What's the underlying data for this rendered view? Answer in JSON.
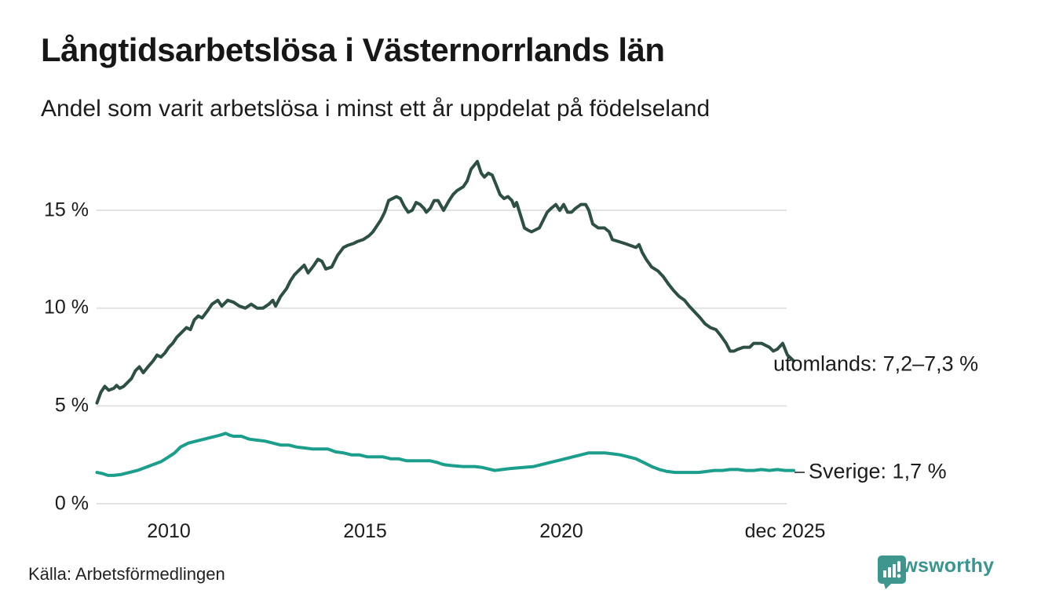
{
  "header": {
    "title": "Långtidsarbetslösa i Västernorrlands län",
    "subtitle": "Andel som varit arbetslösa i minst ett år uppdelat på födelseland"
  },
  "footer": {
    "source": "Källa: Arbetsförmedlingen",
    "brand": "Newsworthy"
  },
  "colors": {
    "utomlands_line": "#2d4f44",
    "sverige_line": "#1b9e8c",
    "gridline": "#e2e2e2",
    "text": "#1b1b1b",
    "brand_teal": "#3a958e"
  },
  "chart_data": {
    "type": "line",
    "title": "Långtidsarbetslösa i Västernorrlands län",
    "subtitle": "Andel som varit arbetslösa i minst ett år uppdelat på födelseland",
    "xlabel": "",
    "ylabel": "",
    "unit": "%",
    "grid": true,
    "legend_position": "end-of-line annotations",
    "x_axis": {
      "ticks": [
        {
          "label": "2010",
          "year": 2010
        },
        {
          "label": "2015",
          "year": 2015
        },
        {
          "label": "2020",
          "year": 2020
        },
        {
          "label": "dec 2025",
          "year": 2025.92
        }
      ],
      "range": [
        2008.17,
        2025.92
      ]
    },
    "y_axis": {
      "ticks": [
        {
          "label": "15 %",
          "value": 15
        },
        {
          "label": "10 %",
          "value": 10
        },
        {
          "label": "5 %",
          "value": 5
        },
        {
          "label": "0 %",
          "value": 0
        }
      ],
      "range": [
        0,
        17.8
      ]
    },
    "series": [
      {
        "name": "utomlands",
        "label": "utomlands: 7,2–7,3 %",
        "last_value_text": "7,2–7,3 %",
        "color": "#2d4f44",
        "points": [
          [
            2008.17,
            5.15
          ],
          [
            2008.27,
            5.7
          ],
          [
            2008.37,
            6.0
          ],
          [
            2008.47,
            5.8
          ],
          [
            2008.6,
            5.9
          ],
          [
            2008.67,
            6.05
          ],
          [
            2008.75,
            5.9
          ],
          [
            2008.85,
            6.0
          ],
          [
            2008.95,
            6.2
          ],
          [
            2009.05,
            6.4
          ],
          [
            2009.15,
            6.8
          ],
          [
            2009.25,
            7.0
          ],
          [
            2009.35,
            6.7
          ],
          [
            2009.45,
            6.95
          ],
          [
            2009.6,
            7.3
          ],
          [
            2009.7,
            7.6
          ],
          [
            2009.8,
            7.5
          ],
          [
            2009.9,
            7.7
          ],
          [
            2010.0,
            8.0
          ],
          [
            2010.1,
            8.2
          ],
          [
            2010.2,
            8.5
          ],
          [
            2010.35,
            8.8
          ],
          [
            2010.45,
            9.0
          ],
          [
            2010.55,
            8.9
          ],
          [
            2010.65,
            9.4
          ],
          [
            2010.75,
            9.6
          ],
          [
            2010.85,
            9.5
          ],
          [
            2011.0,
            9.9
          ],
          [
            2011.1,
            10.2
          ],
          [
            2011.25,
            10.4
          ],
          [
            2011.35,
            10.1
          ],
          [
            2011.5,
            10.4
          ],
          [
            2011.65,
            10.3
          ],
          [
            2011.8,
            10.1
          ],
          [
            2011.95,
            10.0
          ],
          [
            2012.1,
            10.2
          ],
          [
            2012.25,
            10.0
          ],
          [
            2012.4,
            10.0
          ],
          [
            2012.55,
            10.2
          ],
          [
            2012.65,
            10.4
          ],
          [
            2012.72,
            10.1
          ],
          [
            2012.85,
            10.6
          ],
          [
            2013.0,
            11.0
          ],
          [
            2013.1,
            11.4
          ],
          [
            2013.2,
            11.7
          ],
          [
            2013.35,
            12.0
          ],
          [
            2013.45,
            12.2
          ],
          [
            2013.55,
            11.8
          ],
          [
            2013.7,
            12.2
          ],
          [
            2013.8,
            12.5
          ],
          [
            2013.9,
            12.4
          ],
          [
            2014.0,
            12.0
          ],
          [
            2014.15,
            12.1
          ],
          [
            2014.3,
            12.7
          ],
          [
            2014.45,
            13.1
          ],
          [
            2014.55,
            13.2
          ],
          [
            2014.7,
            13.3
          ],
          [
            2014.8,
            13.4
          ],
          [
            2014.95,
            13.5
          ],
          [
            2015.1,
            13.7
          ],
          [
            2015.2,
            13.9
          ],
          [
            2015.3,
            14.2
          ],
          [
            2015.4,
            14.5
          ],
          [
            2015.5,
            14.9
          ],
          [
            2015.6,
            15.5
          ],
          [
            2015.7,
            15.6
          ],
          [
            2015.8,
            15.7
          ],
          [
            2015.9,
            15.6
          ],
          [
            2016.0,
            15.2
          ],
          [
            2016.1,
            14.9
          ],
          [
            2016.2,
            15.0
          ],
          [
            2016.3,
            15.4
          ],
          [
            2016.4,
            15.3
          ],
          [
            2016.5,
            15.1
          ],
          [
            2016.56,
            14.9
          ],
          [
            2016.66,
            15.1
          ],
          [
            2016.76,
            15.5
          ],
          [
            2016.86,
            15.5
          ],
          [
            2017.0,
            15.0
          ],
          [
            2017.14,
            15.5
          ],
          [
            2017.24,
            15.8
          ],
          [
            2017.34,
            16.0
          ],
          [
            2017.5,
            16.2
          ],
          [
            2017.6,
            16.5
          ],
          [
            2017.7,
            17.1
          ],
          [
            2017.86,
            17.5
          ],
          [
            2017.96,
            16.9
          ],
          [
            2018.04,
            16.7
          ],
          [
            2018.14,
            16.9
          ],
          [
            2018.24,
            16.8
          ],
          [
            2018.34,
            16.3
          ],
          [
            2018.44,
            15.8
          ],
          [
            2018.54,
            15.6
          ],
          [
            2018.64,
            15.7
          ],
          [
            2018.74,
            15.5
          ],
          [
            2018.8,
            15.2
          ],
          [
            2018.86,
            15.4
          ],
          [
            2019.0,
            14.5
          ],
          [
            2019.06,
            14.1
          ],
          [
            2019.14,
            14.0
          ],
          [
            2019.24,
            13.9
          ],
          [
            2019.34,
            14.0
          ],
          [
            2019.44,
            14.1
          ],
          [
            2019.54,
            14.5
          ],
          [
            2019.64,
            14.9
          ],
          [
            2019.74,
            15.1
          ],
          [
            2019.86,
            15.3
          ],
          [
            2019.96,
            15.0
          ],
          [
            2020.06,
            15.3
          ],
          [
            2020.16,
            14.9
          ],
          [
            2020.26,
            14.9
          ],
          [
            2020.36,
            15.1
          ],
          [
            2020.5,
            15.3
          ],
          [
            2020.62,
            15.3
          ],
          [
            2020.7,
            15.0
          ],
          [
            2020.8,
            14.3
          ],
          [
            2020.94,
            14.1
          ],
          [
            2021.1,
            14.1
          ],
          [
            2021.22,
            13.9
          ],
          [
            2021.3,
            13.5
          ],
          [
            2021.46,
            13.4
          ],
          [
            2021.62,
            13.3
          ],
          [
            2021.76,
            13.2
          ],
          [
            2021.9,
            13.1
          ],
          [
            2021.98,
            13.25
          ],
          [
            2022.06,
            12.85
          ],
          [
            2022.16,
            12.5
          ],
          [
            2022.3,
            12.1
          ],
          [
            2022.46,
            11.9
          ],
          [
            2022.6,
            11.6
          ],
          [
            2022.74,
            11.2
          ],
          [
            2022.86,
            10.9
          ],
          [
            2023.0,
            10.6
          ],
          [
            2023.14,
            10.4
          ],
          [
            2023.26,
            10.1
          ],
          [
            2023.4,
            9.8
          ],
          [
            2023.54,
            9.5
          ],
          [
            2023.66,
            9.2
          ],
          [
            2023.8,
            9.0
          ],
          [
            2023.94,
            8.9
          ],
          [
            2024.06,
            8.6
          ],
          [
            2024.2,
            8.2
          ],
          [
            2024.3,
            7.8
          ],
          [
            2024.4,
            7.8
          ],
          [
            2024.5,
            7.9
          ],
          [
            2024.64,
            8.0
          ],
          [
            2024.8,
            8.0
          ],
          [
            2024.9,
            8.2
          ],
          [
            2025.0,
            8.2
          ],
          [
            2025.1,
            8.2
          ],
          [
            2025.2,
            8.1
          ],
          [
            2025.3,
            8.0
          ],
          [
            2025.4,
            7.8
          ],
          [
            2025.5,
            7.9
          ],
          [
            2025.64,
            8.2
          ],
          [
            2025.76,
            7.6
          ],
          [
            2025.92,
            7.3
          ]
        ]
      },
      {
        "name": "Sverige",
        "label": "Sverige: 1,7 %",
        "last_value_text": "1,7 %",
        "color": "#1b9e8c",
        "points": [
          [
            2008.17,
            1.6
          ],
          [
            2008.3,
            1.55
          ],
          [
            2008.45,
            1.45
          ],
          [
            2008.6,
            1.45
          ],
          [
            2008.8,
            1.5
          ],
          [
            2009.0,
            1.6
          ],
          [
            2009.2,
            1.7
          ],
          [
            2009.4,
            1.85
          ],
          [
            2009.6,
            2.0
          ],
          [
            2009.8,
            2.15
          ],
          [
            2010.0,
            2.4
          ],
          [
            2010.15,
            2.6
          ],
          [
            2010.3,
            2.9
          ],
          [
            2010.5,
            3.1
          ],
          [
            2010.7,
            3.2
          ],
          [
            2010.9,
            3.3
          ],
          [
            2011.1,
            3.4
          ],
          [
            2011.3,
            3.5
          ],
          [
            2011.45,
            3.6
          ],
          [
            2011.55,
            3.5
          ],
          [
            2011.65,
            3.45
          ],
          [
            2011.85,
            3.45
          ],
          [
            2012.05,
            3.3
          ],
          [
            2012.25,
            3.25
          ],
          [
            2012.45,
            3.2
          ],
          [
            2012.65,
            3.1
          ],
          [
            2012.85,
            3.0
          ],
          [
            2013.05,
            3.0
          ],
          [
            2013.25,
            2.9
          ],
          [
            2013.45,
            2.85
          ],
          [
            2013.65,
            2.8
          ],
          [
            2013.85,
            2.8
          ],
          [
            2014.05,
            2.8
          ],
          [
            2014.25,
            2.65
          ],
          [
            2014.45,
            2.6
          ],
          [
            2014.65,
            2.5
          ],
          [
            2014.85,
            2.5
          ],
          [
            2015.05,
            2.4
          ],
          [
            2015.25,
            2.4
          ],
          [
            2015.45,
            2.4
          ],
          [
            2015.65,
            2.3
          ],
          [
            2015.85,
            2.3
          ],
          [
            2016.05,
            2.2
          ],
          [
            2016.25,
            2.2
          ],
          [
            2016.45,
            2.2
          ],
          [
            2016.65,
            2.2
          ],
          [
            2016.85,
            2.1
          ],
          [
            2017.0,
            2.0
          ],
          [
            2017.2,
            1.95
          ],
          [
            2017.5,
            1.9
          ],
          [
            2017.8,
            1.9
          ],
          [
            2018.0,
            1.85
          ],
          [
            2018.3,
            1.7
          ],
          [
            2018.5,
            1.75
          ],
          [
            2018.7,
            1.8
          ],
          [
            2019.0,
            1.85
          ],
          [
            2019.3,
            1.9
          ],
          [
            2019.5,
            2.0
          ],
          [
            2019.7,
            2.1
          ],
          [
            2019.9,
            2.2
          ],
          [
            2020.1,
            2.3
          ],
          [
            2020.3,
            2.4
          ],
          [
            2020.5,
            2.5
          ],
          [
            2020.7,
            2.6
          ],
          [
            2020.9,
            2.6
          ],
          [
            2021.1,
            2.6
          ],
          [
            2021.3,
            2.55
          ],
          [
            2021.5,
            2.5
          ],
          [
            2021.7,
            2.4
          ],
          [
            2021.9,
            2.3
          ],
          [
            2022.1,
            2.1
          ],
          [
            2022.3,
            1.9
          ],
          [
            2022.5,
            1.75
          ],
          [
            2022.7,
            1.65
          ],
          [
            2022.9,
            1.6
          ],
          [
            2023.1,
            1.6
          ],
          [
            2023.3,
            1.6
          ],
          [
            2023.5,
            1.6
          ],
          [
            2023.7,
            1.65
          ],
          [
            2023.9,
            1.7
          ],
          [
            2024.1,
            1.7
          ],
          [
            2024.3,
            1.75
          ],
          [
            2024.5,
            1.75
          ],
          [
            2024.7,
            1.7
          ],
          [
            2024.9,
            1.7
          ],
          [
            2025.1,
            1.75
          ],
          [
            2025.3,
            1.7
          ],
          [
            2025.5,
            1.75
          ],
          [
            2025.7,
            1.7
          ],
          [
            2025.92,
            1.7
          ]
        ]
      }
    ]
  }
}
